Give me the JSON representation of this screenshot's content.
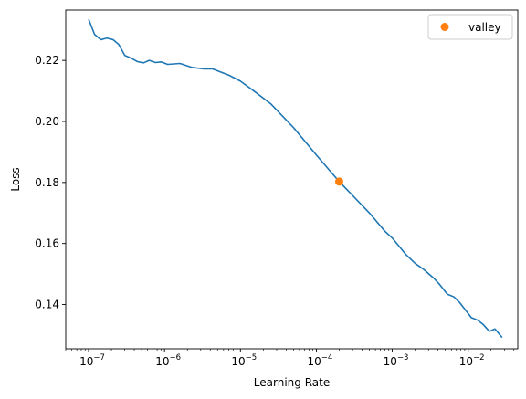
{
  "chart_data": {
    "type": "line",
    "xlabel": "Learning Rate",
    "ylabel": "Loss",
    "xscale": "log",
    "xlim": [
      5e-08,
      0.045
    ],
    "ylim": [
      0.1255,
      0.2365
    ],
    "x_ticks": [
      {
        "value": 1e-07,
        "base": "10",
        "exp": "−7"
      },
      {
        "value": 1e-06,
        "base": "10",
        "exp": "−6"
      },
      {
        "value": 1e-05,
        "base": "10",
        "exp": "−5"
      },
      {
        "value": 0.0001,
        "base": "10",
        "exp": "−4"
      },
      {
        "value": 0.001,
        "base": "10",
        "exp": "−3"
      },
      {
        "value": 0.01,
        "base": "10",
        "exp": "−2"
      }
    ],
    "y_ticks": [
      {
        "value": 0.14,
        "label": "0.14"
      },
      {
        "value": 0.16,
        "label": "0.16"
      },
      {
        "value": 0.18,
        "label": "0.18"
      },
      {
        "value": 0.2,
        "label": "0.20"
      },
      {
        "value": 0.22,
        "label": "0.22"
      }
    ],
    "grid": false,
    "legend_position": "top-right",
    "series": [
      {
        "kind": "line",
        "color": "#1f77b4",
        "x": [
          1e-07,
          1.2e-07,
          1.45e-07,
          1.75e-07,
          2.1e-07,
          2.5e-07,
          3e-07,
          3.6e-07,
          4.4e-07,
          5.3e-07,
          6.3e-07,
          7.6e-07,
          9.1e-07,
          1.1e-06,
          1.6e-06,
          2.3e-06,
          3.3e-06,
          4.3e-06,
          7e-06,
          1e-05,
          1.5e-05,
          2.5e-05,
          5e-05,
          0.0001,
          0.0002,
          0.0005,
          0.0008,
          0.001,
          0.0015,
          0.002,
          0.0026,
          0.0035,
          0.0042,
          0.0053,
          0.0065,
          0.0078,
          0.009,
          0.011,
          0.0135,
          0.016,
          0.019,
          0.0225,
          0.028
        ],
        "y": [
          0.2335,
          0.2285,
          0.2268,
          0.2273,
          0.2268,
          0.2252,
          0.2216,
          0.2208,
          0.2196,
          0.2192,
          0.22,
          0.2193,
          0.2195,
          0.2187,
          0.219,
          0.2177,
          0.2172,
          0.2172,
          0.2152,
          0.2132,
          0.21,
          0.2058,
          0.198,
          0.189,
          0.1803,
          0.17,
          0.164,
          0.1618,
          0.1565,
          0.1535,
          0.1515,
          0.1487,
          0.1466,
          0.1434,
          0.1425,
          0.1405,
          0.1385,
          0.1357,
          0.1348,
          0.1333,
          0.1312,
          0.132,
          0.1292
        ]
      },
      {
        "kind": "marker",
        "name": "valley",
        "color": "#ff7f0e",
        "x": [
          0.0002
        ],
        "y": [
          0.1803
        ]
      }
    ]
  }
}
